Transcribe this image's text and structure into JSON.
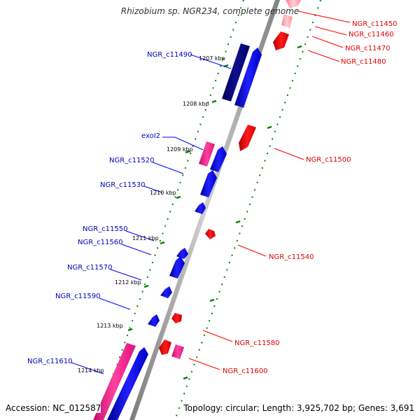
{
  "title": "Rhizobium sp. NGR234, complete genome",
  "footer": {
    "accession": "Accession: NC_012587",
    "topology": "Topology: circular; Length: 3,925,702 bp; Genes: 3,691"
  },
  "colors": {
    "forward_gene": "#0000ff",
    "forward_operon": "#000080",
    "reverse_gene": "#ff0000",
    "rna_like": "#ff1493",
    "forward_label": "#0000bb",
    "reverse_label": "#dd0000",
    "tick": "#008000"
  },
  "ticks": [
    "1207 kbp",
    "1208 kbp",
    "1209 kbp",
    "1210 kbp",
    "1211 kbp",
    "1212 kbp",
    "1213 kbp",
    "1214 kbp"
  ],
  "genes_left": [
    {
      "name": "NGR_c11490",
      "color": "navy"
    },
    {
      "name": "exoI2",
      "color": "pink"
    },
    {
      "name": "NGR_c11520",
      "color": "blue"
    },
    {
      "name": "NGR_c11530",
      "color": "blue"
    },
    {
      "name": "NGR_c11550",
      "color": "blue"
    },
    {
      "name": "NGR_c11560",
      "color": "blue"
    },
    {
      "name": "NGR_c11570",
      "color": "blue"
    },
    {
      "name": "NGR_c11590",
      "color": "blue"
    },
    {
      "name": "NGR_c11610",
      "color": "pink"
    }
  ],
  "genes_right": [
    {
      "name": "NGR_c11450",
      "color": "red"
    },
    {
      "name": "NGR_c11460",
      "color": "red"
    },
    {
      "name": "NGR_c11470",
      "color": "red"
    },
    {
      "name": "NGR_c11480",
      "color": "red"
    },
    {
      "name": "NGR_c11500",
      "color": "red"
    },
    {
      "name": "NGR_c11540",
      "color": "red"
    },
    {
      "name": "NGR_c11580",
      "color": "red"
    },
    {
      "name": "NGR_c11600",
      "color": "pink"
    }
  ]
}
